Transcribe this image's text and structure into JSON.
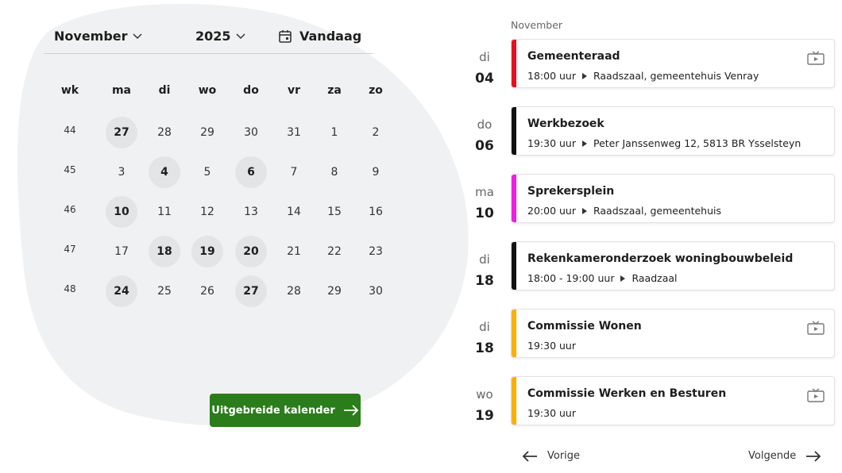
{
  "calendar": {
    "month": "November",
    "year": "2025",
    "today": "Vandaag",
    "columns": [
      "wk",
      "ma",
      "di",
      "wo",
      "do",
      "vr",
      "za",
      "zo"
    ],
    "weeks": [
      {
        "wk": "44",
        "days": [
          {
            "label": "27",
            "has_event": true
          },
          {
            "label": "28",
            "has_event": false
          },
          {
            "label": "29",
            "has_event": false
          },
          {
            "label": "30",
            "has_event": false
          },
          {
            "label": "31",
            "has_event": false
          },
          {
            "label": "1",
            "has_event": false
          },
          {
            "label": "2",
            "has_event": false
          }
        ]
      },
      {
        "wk": "45",
        "days": [
          {
            "label": "3",
            "has_event": false
          },
          {
            "label": "4",
            "has_event": true
          },
          {
            "label": "5",
            "has_event": false
          },
          {
            "label": "6",
            "has_event": true
          },
          {
            "label": "7",
            "has_event": false
          },
          {
            "label": "8",
            "has_event": false
          },
          {
            "label": "9",
            "has_event": false
          }
        ]
      },
      {
        "wk": "46",
        "days": [
          {
            "label": "10",
            "has_event": true
          },
          {
            "label": "11",
            "has_event": false
          },
          {
            "label": "12",
            "has_event": false
          },
          {
            "label": "13",
            "has_event": false
          },
          {
            "label": "14",
            "has_event": false
          },
          {
            "label": "15",
            "has_event": false
          },
          {
            "label": "16",
            "has_event": false
          }
        ]
      },
      {
        "wk": "47",
        "days": [
          {
            "label": "17",
            "has_event": false
          },
          {
            "label": "18",
            "has_event": true
          },
          {
            "label": "19",
            "has_event": true
          },
          {
            "label": "20",
            "has_event": true
          },
          {
            "label": "21",
            "has_event": false
          },
          {
            "label": "22",
            "has_event": false
          },
          {
            "label": "23",
            "has_event": false
          }
        ]
      },
      {
        "wk": "48",
        "days": [
          {
            "label": "24",
            "has_event": true
          },
          {
            "label": "25",
            "has_event": false
          },
          {
            "label": "26",
            "has_event": false
          },
          {
            "label": "27",
            "has_event": true
          },
          {
            "label": "28",
            "has_event": false
          },
          {
            "label": "29",
            "has_event": false
          },
          {
            "label": "30",
            "has_event": false
          }
        ]
      }
    ],
    "button": "Uitgebreide kalender"
  },
  "agenda": {
    "month": "November",
    "events": [
      {
        "weekday": "di",
        "day": "04",
        "title": "Gemeenteraad",
        "time": "18:00 uur",
        "location": "Raadszaal, gemeentehuis Venray",
        "color": "#e8101f",
        "video": true
      },
      {
        "weekday": "do",
        "day": "06",
        "title": "Werkbezoek",
        "time": "19:30 uur",
        "location": "Peter Janssenweg 12, 5813 BR Ysselsteyn",
        "color": "#111111",
        "video": false
      },
      {
        "weekday": "ma",
        "day": "10",
        "title": "Sprekersplein",
        "time": "20:00 uur",
        "location": "Raadszaal, gemeentehuis",
        "color": "#f01ee0",
        "video": false
      },
      {
        "weekday": "di",
        "day": "18",
        "title": "Rekenkameronderzoek woningbouwbeleid",
        "time": "18:00 - 19:00 uur",
        "location": "Raadzaal",
        "color": "#111111",
        "video": false
      },
      {
        "weekday": "di",
        "day": "18",
        "title": "Commissie Wonen",
        "time": "19:30 uur",
        "color": "#ffae00",
        "video": true
      },
      {
        "weekday": "wo",
        "day": "19",
        "title": "Commissie Werken en Besturen",
        "time": "19:30 uur",
        "color": "#ffae00",
        "video": true
      }
    ]
  },
  "nav": {
    "previous": "Vorige",
    "next": "Volgende"
  }
}
